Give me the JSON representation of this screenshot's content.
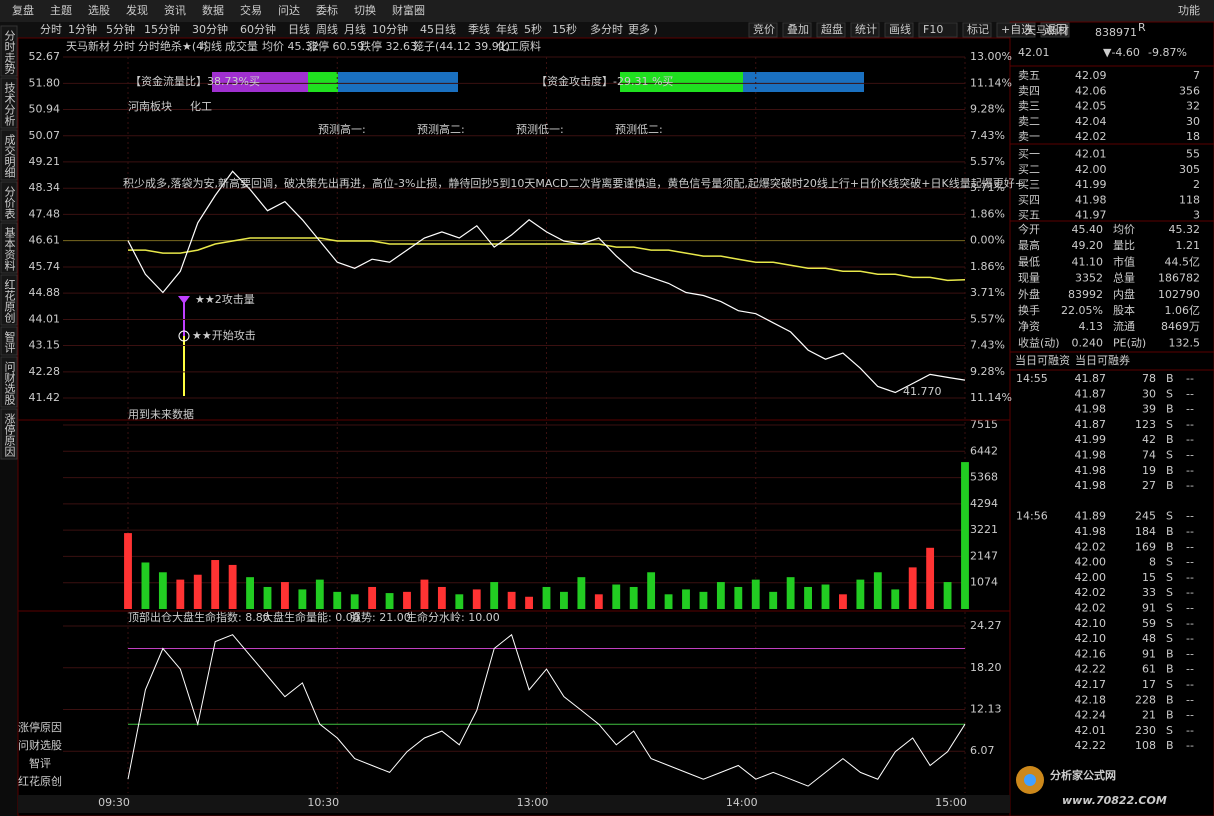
{
  "menu": {
    "items": [
      "复盘",
      "主题",
      "选股",
      "发现",
      "资讯",
      "数据",
      "交易",
      "问达",
      "委标",
      "切换",
      "财富圈"
    ],
    "right": "功能"
  },
  "toolbar": {
    "periods": [
      "分时",
      "1分钟",
      "5分钟",
      "15分钟",
      "30分钟",
      "60分钟",
      "日线",
      "周线",
      "月线",
      "10分钟",
      "45日线",
      "季线",
      "年线",
      "5秒",
      "15秒",
      "多分时",
      "更多 )"
    ],
    "tools": [
      "竞价",
      "叠加",
      "超盘",
      "统计",
      "画线",
      "F10",
      "标记",
      "+自选",
      "返回"
    ]
  },
  "side_tabs": [
    "分时走势",
    "技术分析",
    "成交明细",
    "分价表",
    "基本资料",
    "红花原创",
    "智评",
    "问财选股",
    "涨停原因"
  ],
  "side_links": [
    "涨停原因",
    "问财选股",
    "智评",
    "红花原创"
  ],
  "chart": {
    "header": [
      "天马新材",
      "分时",
      "分时绝杀★(4)",
      "均线",
      "成交量",
      "均价 45.32",
      "涨停 60.59",
      "跌停 32.63",
      "笼子(44.12 39.91)",
      "化工原料"
    ],
    "annotations": {
      "flow_ratio": "【资金流量比】38.73%买",
      "attack_degree": "【资金攻击度】-29.31 %买",
      "sector": "河南板块",
      "industry": "化工",
      "forecast": [
        "预测高一:",
        "预测高二:",
        "预测低一:",
        "预测低二:"
      ],
      "motto": "积少成多,落袋为安,新高要回调，破决策先出再进，高位-3%止损，静待回抄5到10天MACD二次背离要谨慎追，黄色信号量须配,起爆突破时20线上行+日价K线突破+日K线量起爆更好+",
      "attack2": "★★2攻击量",
      "attack_start": "★★开始攻击",
      "low_price": "41.770",
      "future_data": "用到未来数据"
    },
    "price": {
      "ylim": [
        41.42,
        52.67
      ],
      "yticks": [
        52.67,
        {
          "value": 51.8,
          "label": "51.80"
        },
        50.94,
        50.07,
        49.21,
        48.34,
        47.48,
        46.61,
        45.74,
        44.88,
        44.01,
        43.15,
        42.28,
        41.42
      ],
      "pct_labels": [
        "13.00%",
        "11.14%",
        "9.28%",
        "7.43%",
        "5.57%",
        "3.71%",
        "1.86%",
        "0.00%",
        "1.86%",
        "3.71%",
        "5.57%",
        "7.43%",
        "9.28%",
        "11.14%"
      ],
      "price_line": [
        46.61,
        45.5,
        44.9,
        45.6,
        47.2,
        48.1,
        48.9,
        48.3,
        47.6,
        47.9,
        47.3,
        46.6,
        45.9,
        45.7,
        46.0,
        45.9,
        46.3,
        46.7,
        46.9,
        46.7,
        47.1,
        46.4,
        46.8,
        47.3,
        46.9,
        46.6,
        46.5,
        46.7,
        46.1,
        45.6,
        45.4,
        45.2,
        44.9,
        44.8,
        44.6,
        44.3,
        44.2,
        43.9,
        43.6,
        43.0,
        42.7,
        42.9,
        42.4,
        41.8,
        41.6,
        41.9,
        42.2,
        42.1,
        42.01
      ],
      "avg_line": [
        46.3,
        46.3,
        46.2,
        46.2,
        46.3,
        46.5,
        46.6,
        46.7,
        46.7,
        46.7,
        46.7,
        46.7,
        46.6,
        46.6,
        46.6,
        46.5,
        46.5,
        46.5,
        46.5,
        46.5,
        46.5,
        46.5,
        46.5,
        46.5,
        46.5,
        46.5,
        46.5,
        46.5,
        46.4,
        46.4,
        46.3,
        46.3,
        46.2,
        46.1,
        46.1,
        46.0,
        45.9,
        45.9,
        45.8,
        45.7,
        45.7,
        45.6,
        45.6,
        45.5,
        45.5,
        45.4,
        45.4,
        45.3,
        45.32
      ],
      "price_color": "#ffffff",
      "avg_color": "#e8e84a"
    },
    "volume": {
      "ylim": [
        0,
        7515
      ],
      "yticks": [
        7515,
        6442,
        5368,
        4294,
        3221,
        2147,
        1074
      ],
      "values": [
        3100,
        1900,
        1500,
        1200,
        1400,
        2000,
        1800,
        1300,
        900,
        1100,
        800,
        1200,
        700,
        600,
        900,
        650,
        700,
        1200,
        900,
        600,
        800,
        1100,
        700,
        500,
        900,
        700,
        1300,
        600,
        1000,
        900,
        1500,
        600,
        800,
        700,
        1100,
        900,
        1200,
        700,
        1300,
        900,
        1000,
        600,
        1200,
        1500,
        800,
        1700,
        2500,
        1100,
        6000
      ],
      "up_color": "#ff3333",
      "down_color": "#22cc22"
    },
    "indicator": {
      "header": [
        "顶部出仓",
        "大盘生命指数: 8.80",
        "大盘生命量能: 0.00",
        "强势: 21.00",
        "生命分水岭: 10.00"
      ],
      "ylim": [
        0,
        24.27
      ],
      "yticks": [
        24.27,
        {
          "value": 18.2,
          "label": "18.20"
        },
        12.13,
        6.07
      ],
      "levels": [
        {
          "value": 21,
          "color": "#c040c0"
        },
        {
          "value": 10,
          "color": "#40c040"
        }
      ],
      "values": [
        2,
        15,
        21,
        18,
        10,
        22,
        23,
        20,
        17,
        14,
        16,
        10,
        8,
        5,
        4,
        3,
        6,
        8,
        9,
        7,
        12,
        21,
        23,
        15,
        18,
        14,
        12,
        10,
        7,
        9,
        5,
        4,
        3,
        2,
        3,
        4,
        2,
        3,
        2,
        1,
        3,
        5,
        3,
        2,
        6,
        8,
        4,
        6,
        10
      ],
      "color": "#ffffff"
    },
    "time_labels": [
      "09:30",
      "10:30",
      "13:00",
      "14:00",
      "15:00"
    ]
  },
  "quote": {
    "name": "天马新材",
    "code": "838971",
    "flag": "R",
    "price": "42.01",
    "change": "▼-4.60",
    "change_pct": "-9.87%",
    "order_book": [
      [
        "卖五",
        "42.09",
        "7"
      ],
      [
        "卖四",
        "42.06",
        "356"
      ],
      [
        "卖三",
        "42.05",
        "32"
      ],
      [
        "卖二",
        "42.04",
        "30"
      ],
      [
        "卖一",
        "42.02",
        "18"
      ],
      [
        "买一",
        "42.01",
        "55"
      ],
      [
        "买二",
        "42.00",
        "305"
      ],
      [
        "买三",
        "41.99",
        "2"
      ],
      [
        "买四",
        "41.98",
        "118"
      ],
      [
        "买五",
        "41.97",
        "3"
      ]
    ],
    "stats": [
      [
        "今开",
        "45.40",
        "均价",
        "45.32"
      ],
      [
        "最高",
        "49.20",
        "量比",
        "1.21"
      ],
      [
        "最低",
        "41.10",
        "市值",
        "44.5亿"
      ],
      [
        "现量",
        "3352",
        "总量",
        "186782"
      ],
      [
        "外盘",
        "83992",
        "内盘",
        "102790"
      ],
      [
        "换手",
        "22.05%",
        "股本",
        "1.06亿"
      ],
      [
        "净资",
        "4.13",
        "流通",
        "8469万"
      ],
      [
        "收益(动)",
        "0.240",
        "PE(动)",
        "132.5"
      ]
    ],
    "tabs": [
      "当日可融资",
      "当日可融券"
    ],
    "ticks": [
      {
        "time": "14:55",
        "rows": [
          [
            "41.87",
            "78",
            "B",
            "--"
          ],
          [
            "41.87",
            "30",
            "S",
            "--"
          ],
          [
            "41.98",
            "39",
            "B",
            "--"
          ],
          [
            "41.87",
            "123",
            "S",
            "--"
          ],
          [
            "41.99",
            "42",
            "B",
            "--"
          ],
          [
            "41.98",
            "74",
            "S",
            "--"
          ],
          [
            "41.98",
            "19",
            "B",
            "--"
          ],
          [
            "41.98",
            "27",
            "B",
            "--"
          ]
        ]
      },
      {
        "time": "14:56",
        "rows": [
          [
            "41.89",
            "245",
            "S",
            "--"
          ],
          [
            "41.98",
            "184",
            "B",
            "--"
          ],
          [
            "42.02",
            "169",
            "B",
            "--"
          ],
          [
            "42.00",
            "8",
            "S",
            "--"
          ],
          [
            "42.00",
            "15",
            "S",
            "--"
          ],
          [
            "42.02",
            "33",
            "S",
            "--"
          ],
          [
            "42.02",
            "91",
            "S",
            "--"
          ],
          [
            "42.10",
            "59",
            "S",
            "--"
          ],
          [
            "42.10",
            "48",
            "S",
            "--"
          ],
          [
            "42.16",
            "91",
            "B",
            "--"
          ],
          [
            "42.22",
            "61",
            "B",
            "--"
          ],
          [
            "42.17",
            "17",
            "S",
            "--"
          ],
          [
            "42.18",
            "228",
            "B",
            "--"
          ],
          [
            "42.24",
            "21",
            "B",
            "--"
          ],
          [
            "42.01",
            "230",
            "S",
            "--"
          ],
          [
            "42.22",
            "108",
            "B",
            "--"
          ]
        ]
      }
    ]
  },
  "watermark": {
    "title": "分析家公式网",
    "url": "www.70822.COM"
  }
}
